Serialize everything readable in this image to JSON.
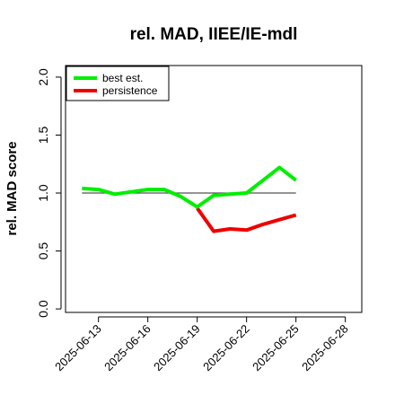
{
  "chart_data": {
    "type": "line",
    "title": "rel. MAD, IIEE/IE-mdl",
    "xlabel": "",
    "ylabel": "rel. MAD score",
    "x": [
      "2025-06-12",
      "2025-06-13",
      "2025-06-14",
      "2025-06-15",
      "2025-06-16",
      "2025-06-17",
      "2025-06-18",
      "2025-06-19",
      "2025-06-20",
      "2025-06-21",
      "2025-06-22",
      "2025-06-23",
      "2025-06-24",
      "2025-06-25"
    ],
    "xticks": [
      "2025-06-13",
      "2025-06-16",
      "2025-06-19",
      "2025-06-22",
      "2025-06-25",
      "2025-06-28"
    ],
    "xlim": [
      "2025-06-11",
      "2025-06-29"
    ],
    "yticks": [
      "0.0",
      "0.5",
      "1.0",
      "1.5",
      "2.0"
    ],
    "ylim": [
      -0.03,
      2.1
    ],
    "reference_line": {
      "value": 1.0,
      "from": "2025-06-12",
      "to": "2025-06-25",
      "color": "#555555"
    },
    "series": [
      {
        "name": "best est.",
        "color": "#00ee00",
        "values": [
          1.04,
          1.03,
          0.99,
          1.01,
          1.03,
          1.03,
          0.97,
          0.88,
          0.98,
          0.99,
          1.0,
          1.11,
          1.22,
          1.11
        ]
      },
      {
        "name": "persistence",
        "color": "#ee0000",
        "values": [
          null,
          null,
          null,
          null,
          null,
          null,
          null,
          0.87,
          0.67,
          0.69,
          0.68,
          0.73,
          0.77,
          0.81
        ]
      }
    ],
    "legend_position": "top-left",
    "grid": false
  }
}
